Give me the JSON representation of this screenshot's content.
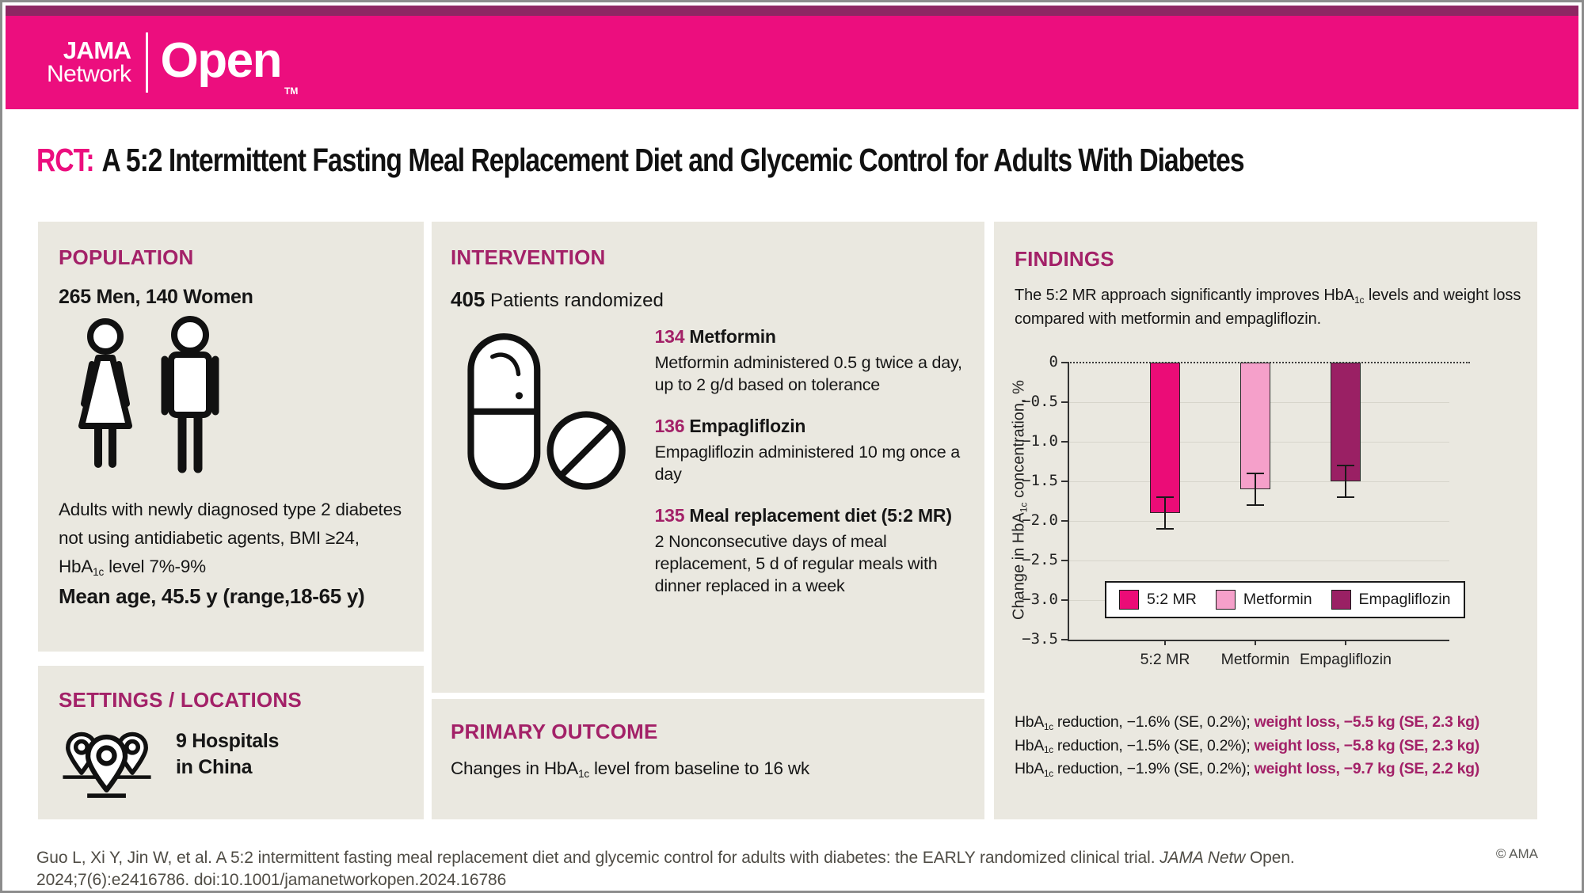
{
  "header": {
    "logo_jama": "JAMA",
    "logo_network": "Network",
    "logo_open": "Open",
    "logo_tm": "TM"
  },
  "title": {
    "prefix": "RCT:",
    "text": "A 5:2 Intermittent Fasting Meal Replacement Diet and Glycemic Control for Adults With Diabetes"
  },
  "population": {
    "heading": "POPULATION",
    "subjects": "265 Men, 140 Women",
    "desc_line1": "Adults with newly diagnosed type 2 diabetes",
    "desc_line2": "not using antidiabetic agents, BMI ≥24,",
    "desc_line3_pre": "HbA",
    "desc_line3_sub": "1c",
    "desc_line3_post": " level 7%-9%",
    "mean_age": "Mean age, 45.5 y (range,18-65 y)"
  },
  "settings": {
    "heading": "SETTINGS / LOCATIONS",
    "line1": "9 Hospitals",
    "line2": "in China"
  },
  "intervention": {
    "heading": "INTERVENTION",
    "count": "405",
    "count_suffix": " Patients randomized",
    "arms": [
      {
        "n": "134",
        "name": "Metformin",
        "desc": "Metformin administered 0.5 g twice a day, up to 2 g/d based on tolerance"
      },
      {
        "n": "136",
        "name": "Empagliflozin",
        "desc": "Empagliflozin administered 10 mg once a day"
      },
      {
        "n": "135",
        "name": "Meal replacement diet (5:2 MR)",
        "desc": "2 Nonconsecutive days of meal replacement, 5 d of regular meals with dinner replaced in a week"
      }
    ]
  },
  "primary_outcome": {
    "heading": "PRIMARY OUTCOME",
    "text_pre": "Changes in HbA",
    "text_sub": "1c",
    "text_post": " level from baseline to 16 wk"
  },
  "findings": {
    "heading": "FINDINGS",
    "summary_pre": "The 5:2 MR approach significantly improves HbA",
    "summary_sub": "1c",
    "summary_post": " levels and weight loss compared with metformin and empagliflozin.",
    "results": [
      {
        "pre": "HbA",
        "sub": "1c",
        "mid": " reduction, −1.6% (SE, 0.2%); ",
        "highlight": "weight loss, −5.5 kg (SE, 2.3 kg)"
      },
      {
        "pre": "HbA",
        "sub": "1c",
        "mid": " reduction, −1.5% (SE, 0.2%); ",
        "highlight": "weight loss, −5.8 kg (SE, 2.3 kg)"
      },
      {
        "pre": "HbA",
        "sub": "1c",
        "mid": " reduction, −1.9% (SE, 0.2%); ",
        "highlight": "weight loss, −9.7 kg (SE, 2.2 kg)"
      }
    ]
  },
  "chart_data": {
    "type": "bar",
    "title": "",
    "categories": [
      "5:2 MR",
      "Metformin",
      "Empagliflozin"
    ],
    "values": [
      -1.9,
      -1.6,
      -1.5
    ],
    "errors": [
      0.2,
      0.2,
      0.2
    ],
    "colors": [
      "#eb0c77",
      "#f5a0ca",
      "#9a2064"
    ],
    "ylabel_pre": "Change in HbA",
    "ylabel_sub": "1c",
    "ylabel_post": " concentration, %",
    "ylim": [
      -3.5,
      0
    ],
    "yticks": [
      0,
      -0.5,
      -1.0,
      -1.5,
      -2.0,
      -2.5,
      -3.0,
      -3.5
    ],
    "zero_line_style": "dotted",
    "grid": true,
    "legend": [
      "5:2 MR",
      "Metformin",
      "Empagliflozin"
    ],
    "legend_position": "inside-bottom"
  },
  "footer": {
    "citation_pre": "Guo L, Xi Y, Jin W, et al. A 5:2 intermittent fasting meal replacement diet and glycemic control for adults with diabetes: the EARLY randomized clinical trial. ",
    "citation_italic": "JAMA Netw",
    "citation_post": " Open.",
    "citation_line2": "2024;7(6):e2416786. doi:10.1001/jamanetworkopen.2024.16786",
    "copyright": "© AMA"
  },
  "colors": {
    "brand_pink": "#ec0e7e",
    "top_strip": "#8e2763",
    "heading_magenta": "#a32168",
    "panel_background": "#eae8e0"
  },
  "icons": {
    "population": "man-woman-outline-icon",
    "intervention": "capsule-and-tablet-icon",
    "settings": "map-pins-icon"
  }
}
